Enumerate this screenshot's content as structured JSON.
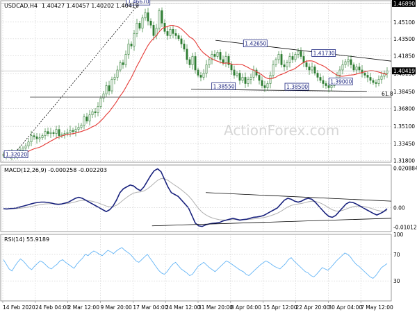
{
  "chart_data": {
    "type": "candlestick",
    "symbol_label": "USDCAD,H4",
    "ohlc_label": "1.40427 1.40457 1.40202 1.40419",
    "watermark": "ActionForex.com",
    "price_panel": {
      "ylim": [
        1.3165,
        1.4715
      ],
      "y_ticks": [
        1.318,
        1.3345,
        1.351,
        1.368,
        1.3845,
        1.4015,
        1.4185,
        1.435,
        1.451,
        1.4689
      ],
      "y_tick_labels": [
        "1.31800",
        "1.33450",
        "1.35100",
        "1.36800",
        "1.38450",
        "1.40150",
        "1.41850",
        "1.43500",
        "1.45100",
        "1.46890"
      ],
      "highlight_labels": [
        {
          "label": "1.46890",
          "value": 1.4689,
          "style": "dark"
        },
        {
          "label": "1.40419",
          "value": 1.40419,
          "style": "dark"
        }
      ],
      "moving_average_color": "#e53935",
      "candle_color": "#2e7d32",
      "annotations": [
        {
          "label": "1.46670",
          "x": 56,
          "y": 1.4667
        },
        {
          "label": "1.42650",
          "x": 104,
          "y": 1.4265
        },
        {
          "label": "1.41730",
          "x": 132,
          "y": 1.4173
        },
        {
          "label": "1.38550",
          "x": 91,
          "y": 1.3855
        },
        {
          "label": "1.38500",
          "x": 121,
          "y": 1.385
        },
        {
          "label": "1.39000",
          "x": 139,
          "y": 1.39
        },
        {
          "label": "1.32020",
          "x": 6,
          "y": 1.3202
        }
      ],
      "fib_level": {
        "label": "61.8",
        "y": 1.379
      },
      "trendlines": [
        {
          "points": [
            [
              4,
              1.3202
            ],
            [
              56,
              1.4667
            ]
          ],
          "style": "dotted"
        },
        {
          "points": [
            [
              88,
              1.4335
            ],
            [
              160,
              1.4135
            ]
          ],
          "style": "solid"
        },
        {
          "points": [
            [
              78,
              1.3865
            ],
            [
              150,
              1.3845
            ]
          ],
          "style": "solid"
        }
      ],
      "close_series": [
        1.324,
        1.323,
        1.3245,
        1.3225,
        1.324,
        1.326,
        1.328,
        1.33,
        1.332,
        1.336,
        1.342,
        1.341,
        1.339,
        1.34,
        1.342,
        1.346,
        1.344,
        1.345,
        1.344,
        1.348,
        1.342,
        1.343,
        1.344,
        1.345,
        1.347,
        1.346,
        1.348,
        1.35,
        1.352,
        1.36,
        1.356,
        1.362,
        1.365,
        1.364,
        1.37,
        1.378,
        1.382,
        1.39,
        1.385,
        1.396,
        1.398,
        1.405,
        1.412,
        1.41,
        1.42,
        1.43,
        1.428,
        1.44,
        1.45,
        1.445,
        1.455,
        1.46,
        1.452,
        1.448,
        1.438,
        1.445,
        1.462,
        1.45,
        1.442,
        1.438,
        1.444,
        1.44,
        1.438,
        1.435,
        1.43,
        1.425,
        1.415,
        1.41,
        1.418,
        1.405,
        1.4,
        1.398,
        1.402,
        1.41,
        1.415,
        1.42,
        1.418,
        1.422,
        1.415,
        1.412,
        1.418,
        1.41,
        1.405,
        1.4,
        1.402,
        1.395,
        1.398,
        1.392,
        1.396,
        1.398,
        1.405,
        1.4,
        1.395,
        1.39,
        1.388,
        1.392,
        1.4,
        1.41,
        1.415,
        1.42,
        1.41,
        1.408,
        1.412,
        1.418,
        1.415,
        1.42,
        1.423,
        1.418,
        1.412,
        1.408,
        1.405,
        1.408,
        1.402,
        1.398,
        1.395,
        1.392,
        1.39,
        1.388,
        1.39,
        1.395,
        1.4,
        1.405,
        1.41,
        1.413,
        1.415,
        1.41,
        1.405,
        1.408,
        1.405,
        1.402,
        1.4,
        1.398,
        1.395,
        1.393,
        1.392,
        1.396,
        1.399,
        1.402,
        1.4042
      ]
    },
    "macd_panel": {
      "label": "MACD(12,26,9) -0.000258 -0.002203",
      "ylim": [
        -0.0125,
        0.0225
      ],
      "y_tick_labels": [
        "0.020884",
        "0.00",
        "-0.010121"
      ],
      "y_tick_values": [
        0.020884,
        0.0,
        -0.010121
      ],
      "macd_color": "#1a237e",
      "signal_color": "#b0b0b0",
      "macd_series": [
        -0.0005,
        -0.0006,
        -0.0004,
        -0.0003,
        0.0,
        0.0005,
        0.001,
        0.0015,
        0.002,
        0.0025,
        0.0028,
        0.003,
        0.003,
        0.0028,
        0.0025,
        0.002,
        0.0018,
        0.002,
        0.0025,
        0.003,
        0.004,
        0.005,
        0.0055,
        0.005,
        0.004,
        0.003,
        0.002,
        0.001,
        0.0,
        -0.001,
        -0.002,
        -0.001,
        0.001,
        0.004,
        0.008,
        0.01,
        0.011,
        0.012,
        0.0115,
        0.01,
        0.009,
        0.011,
        0.014,
        0.017,
        0.0195,
        0.0205,
        0.019,
        0.015,
        0.011,
        0.008,
        0.007,
        0.006,
        0.004,
        0.002,
        0.0,
        -0.004,
        -0.008,
        -0.0095,
        -0.0098,
        -0.009,
        -0.0085,
        -0.0082,
        -0.008,
        -0.0078,
        -0.007,
        -0.0065,
        -0.006,
        -0.0055,
        -0.006,
        -0.0065,
        -0.0062,
        -0.006,
        -0.0055,
        -0.005,
        -0.0048,
        -0.0045,
        -0.004,
        -0.003,
        -0.002,
        -0.001,
        0.0,
        0.002,
        0.004,
        0.005,
        0.0045,
        0.0035,
        0.003,
        0.0035,
        0.0045,
        0.005,
        0.0045,
        0.003,
        0.001,
        -0.001,
        -0.003,
        -0.0045,
        -0.005,
        -0.004,
        -0.002,
        0.0,
        0.002,
        0.003,
        0.0028,
        0.002,
        0.001,
        0.0,
        -0.001,
        -0.002,
        -0.003,
        -0.0038,
        -0.003,
        -0.002,
        -0.0005
      ]
    },
    "rsi_panel": {
      "label": "RSI(14) 55.9189",
      "ylim": [
        0,
        100
      ],
      "y_ticks": [
        30,
        70,
        100
      ],
      "y_tick_labels": [
        "30",
        "70",
        "100"
      ],
      "line_color": "#64b5f6",
      "series": [
        62,
        55,
        48,
        45,
        52,
        58,
        63,
        60,
        55,
        50,
        47,
        52,
        56,
        60,
        58,
        54,
        50,
        48,
        52,
        55,
        60,
        62,
        58,
        55,
        52,
        49,
        55,
        60,
        64,
        70,
        68,
        72,
        75,
        73,
        70,
        68,
        72,
        76,
        74,
        71,
        75,
        78,
        80,
        76,
        73,
        70,
        65,
        60,
        58,
        62,
        66,
        70,
        64,
        58,
        52,
        46,
        42,
        40,
        44,
        50,
        55,
        58,
        53,
        48,
        45,
        42,
        38,
        40,
        46,
        52,
        55,
        58,
        54,
        50,
        47,
        44,
        48,
        52,
        56,
        60,
        58,
        55,
        52,
        49,
        46,
        44,
        40,
        38,
        42,
        46,
        50,
        54,
        57,
        60,
        58,
        55,
        52,
        50,
        48,
        52,
        56,
        62,
        65,
        60,
        56,
        52,
        48,
        44,
        42,
        38,
        36,
        40,
        45,
        50,
        48,
        46,
        50,
        55,
        60,
        64,
        68,
        72,
        70,
        66,
        60,
        55,
        52,
        48,
        44,
        40,
        36,
        34,
        38,
        44,
        50,
        53,
        56
      ]
    },
    "x_tick_labels": [
      "14 Feb 2020",
      "24 Feb 04:00",
      "2 Mar 12:00",
      "9 Mar 20:00",
      "17 Mar 04:00",
      "24 Mar 12:00",
      "31 Mar 20:00",
      "8 Apr 04:00",
      "15 Apr 12:00",
      "22 Apr 20:00",
      "30 Apr 04:00",
      "7 May 12:00"
    ]
  }
}
